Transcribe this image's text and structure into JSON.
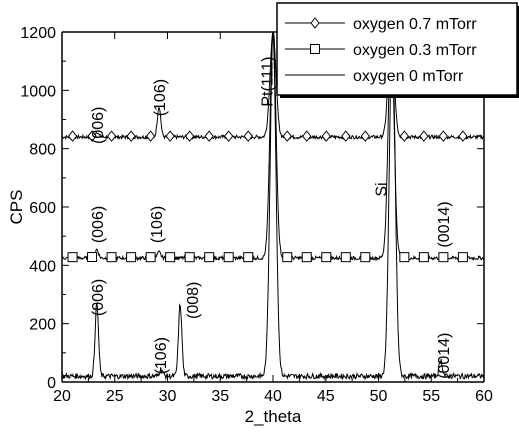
{
  "chart_data": {
    "type": "line",
    "xlabel": "2_theta",
    "ylabel": "CPS",
    "xlim": [
      20,
      60
    ],
    "ylim": [
      0,
      1200
    ],
    "xticks": [
      20,
      25,
      30,
      35,
      40,
      45,
      50,
      55,
      60
    ],
    "yticks": [
      0,
      200,
      400,
      600,
      800,
      1000,
      1200
    ],
    "grid": false,
    "legend_position": "top-right",
    "series": [
      {
        "name": "oxygen 0.7 mTorr",
        "marker": "diamond",
        "baseline": 840,
        "peaks": [
          {
            "x": 23.3,
            "y": 858
          },
          {
            "x": 29.2,
            "y": 945
          },
          {
            "x": 40.0,
            "y": 1200
          },
          {
            "x": 51.2,
            "y": 1200
          }
        ]
      },
      {
        "name": "oxygen 0.3 mTorr",
        "marker": "square",
        "baseline": 425,
        "peaks": [
          {
            "x": 23.3,
            "y": 455
          },
          {
            "x": 29.2,
            "y": 445
          },
          {
            "x": 40.0,
            "y": 1200
          },
          {
            "x": 51.2,
            "y": 1200
          }
        ]
      },
      {
        "name": "oxygen 0 mTorr",
        "marker": "none",
        "baseline": 20,
        "peaks": [
          {
            "x": 23.3,
            "y": 270
          },
          {
            "x": 29.4,
            "y": 45
          },
          {
            "x": 31.2,
            "y": 265
          },
          {
            "x": 40.0,
            "y": 1200
          },
          {
            "x": 51.3,
            "y": 1200
          },
          {
            "x": 55.9,
            "y": 75
          }
        ]
      }
    ],
    "annotations": [
      {
        "text": "(006)",
        "x": 23.3,
        "y": 880,
        "rotated": true
      },
      {
        "text": "(106)",
        "x": 29.2,
        "y": 975,
        "rotated": true
      },
      {
        "text": "Pt(111)",
        "x": 39.4,
        "y": 1030,
        "rotated": true
      },
      {
        "text": "(006)",
        "x": 23.3,
        "y": 540,
        "rotated": true
      },
      {
        "text": "(106)",
        "x": 28.9,
        "y": 540,
        "rotated": true
      },
      {
        "text": "Si",
        "x": 50.2,
        "y": 660,
        "rotated": true
      },
      {
        "text": "(0014)",
        "x": 56.1,
        "y": 540,
        "rotated": true
      },
      {
        "text": "(006)",
        "x": 23.3,
        "y": 290,
        "rotated": true
      },
      {
        "text": "(106)",
        "x": 29.3,
        "y": 90,
        "rotated": true
      },
      {
        "text": "(008)",
        "x": 32.3,
        "y": 280,
        "rotated": true
      },
      {
        "text": "(0014)",
        "x": 56.1,
        "y": 90,
        "rotated": true
      }
    ]
  }
}
